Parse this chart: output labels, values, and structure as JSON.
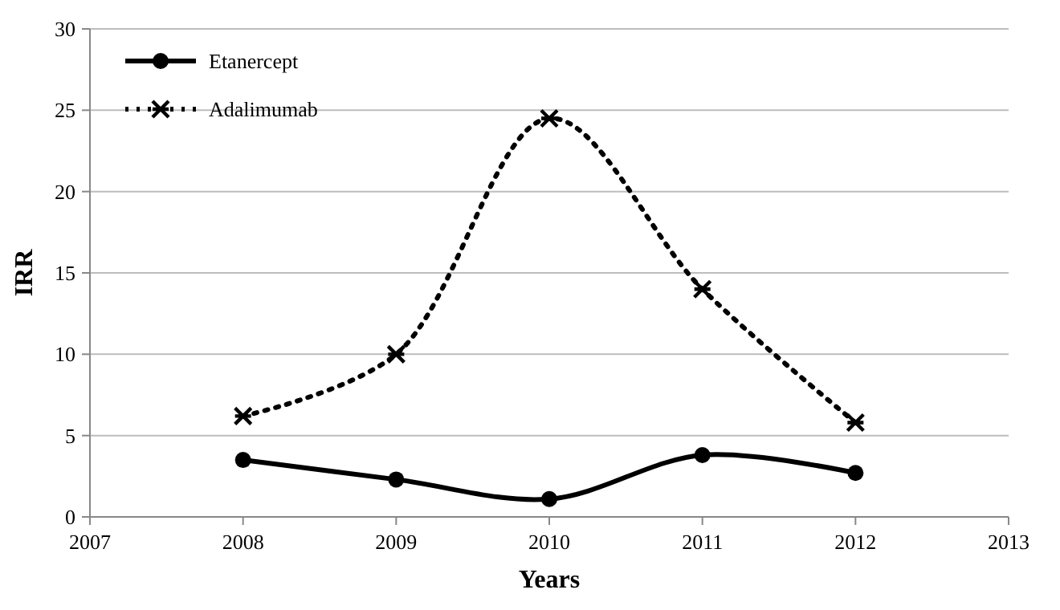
{
  "chart_data": {
    "type": "line",
    "xlabel": "Years",
    "ylabel": "IRR",
    "x": [
      2008,
      2009,
      2010,
      2011,
      2012
    ],
    "series": [
      {
        "name": "Etanercept",
        "color": "#000000",
        "values": [
          3.5,
          2.3,
          1.1,
          3.8,
          2.7
        ],
        "marker": "circle",
        "line_style": "solid"
      },
      {
        "name": "Adalimumab",
        "color": "#000000",
        "values": [
          6.2,
          10.0,
          24.5,
          14.0,
          5.8
        ],
        "marker": "cross",
        "line_style": "dotted"
      }
    ],
    "xlim": [
      2007,
      2013
    ],
    "xticks": [
      2007,
      2008,
      2009,
      2010,
      2011,
      2012,
      2013
    ],
    "ylim": [
      0,
      30
    ],
    "yticks": [
      0,
      5,
      10,
      15,
      20,
      25,
      30
    ],
    "grid": "y",
    "legend": "top left"
  }
}
